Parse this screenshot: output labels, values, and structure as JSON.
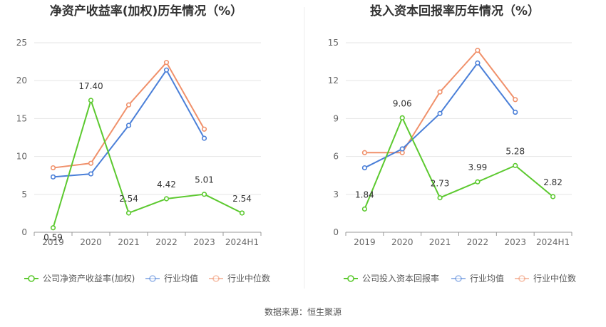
{
  "chart_data": [
    {
      "type": "line",
      "title": "净资产收益率(加权)历年情况（%）",
      "categories": [
        "2019",
        "2020",
        "2021",
        "2022",
        "2023",
        "2024H1"
      ],
      "ylim": [
        0,
        25
      ],
      "yticks": [
        0,
        5,
        10,
        15,
        20,
        25
      ],
      "grid": true,
      "legend_position": "bottom",
      "series": [
        {
          "name": "公司净资产收益率(加权)",
          "color": "#5cc92f",
          "values": [
            0.59,
            17.4,
            2.54,
            4.42,
            5.01,
            2.54
          ],
          "labels": [
            "0.59",
            "17.40",
            "2.54",
            "4.42",
            "5.01",
            "2.54"
          ]
        },
        {
          "name": "行业均值",
          "color": "#4a7fd8",
          "values": [
            7.3,
            7.7,
            14.1,
            21.4,
            12.4,
            null
          ]
        },
        {
          "name": "行业中位数",
          "color": "#f0906a",
          "values": [
            8.5,
            9.1,
            16.8,
            22.4,
            13.6,
            null
          ]
        }
      ]
    },
    {
      "type": "line",
      "title": "投入资本回报率历年情况（%）",
      "categories": [
        "2019",
        "2020",
        "2021",
        "2022",
        "2023",
        "2024H1"
      ],
      "ylim": [
        0,
        15
      ],
      "yticks": [
        0,
        3,
        6,
        9,
        12,
        15
      ],
      "grid": true,
      "legend_position": "bottom",
      "series": [
        {
          "name": "公司投入资本回报率",
          "color": "#5cc92f",
          "values": [
            1.84,
            9.06,
            2.73,
            3.99,
            5.28,
            2.82
          ],
          "labels": [
            "1.84",
            "9.06",
            "2.73",
            "3.99",
            "5.28",
            "2.82"
          ]
        },
        {
          "name": "行业均值",
          "color": "#4a7fd8",
          "values": [
            5.1,
            6.6,
            9.4,
            13.4,
            9.5,
            null
          ]
        },
        {
          "name": "行业中位数",
          "color": "#f0906a",
          "values": [
            6.3,
            6.3,
            11.1,
            14.4,
            10.5,
            null
          ]
        }
      ]
    }
  ],
  "source": "数据来源：恒生聚源"
}
